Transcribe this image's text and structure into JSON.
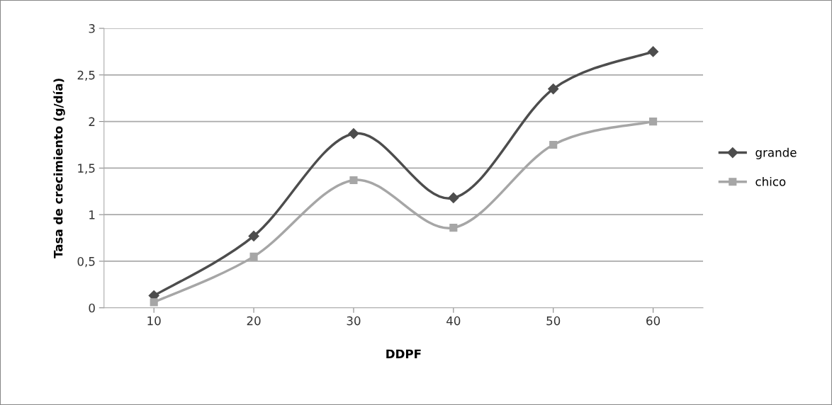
{
  "chart_data": {
    "type": "line",
    "xlabel": "DDPF",
    "ylabel": "Tasa de crecimiento (g/día)",
    "categories": [
      "10",
      "20",
      "30",
      "40",
      "50",
      "60"
    ],
    "series": [
      {
        "name": "grande",
        "color": "#4d4d4d",
        "marker": "diamond",
        "values": [
          0.13,
          0.77,
          1.87,
          1.18,
          2.35,
          2.75
        ]
      },
      {
        "name": "chico",
        "color": "#a6a6a6",
        "marker": "square",
        "values": [
          0.06,
          0.55,
          1.37,
          0.86,
          1.75,
          2.0
        ]
      }
    ],
    "ylim": [
      0,
      3
    ],
    "yticks": [
      0,
      {
        "value": 0.5,
        "label": "0,5"
      },
      1,
      {
        "value": 1.5,
        "label": "1,5"
      },
      2,
      {
        "value": 2.5,
        "label": "2,5"
      },
      3
    ],
    "grid": "y",
    "legend": "right",
    "line_style": "solid"
  }
}
